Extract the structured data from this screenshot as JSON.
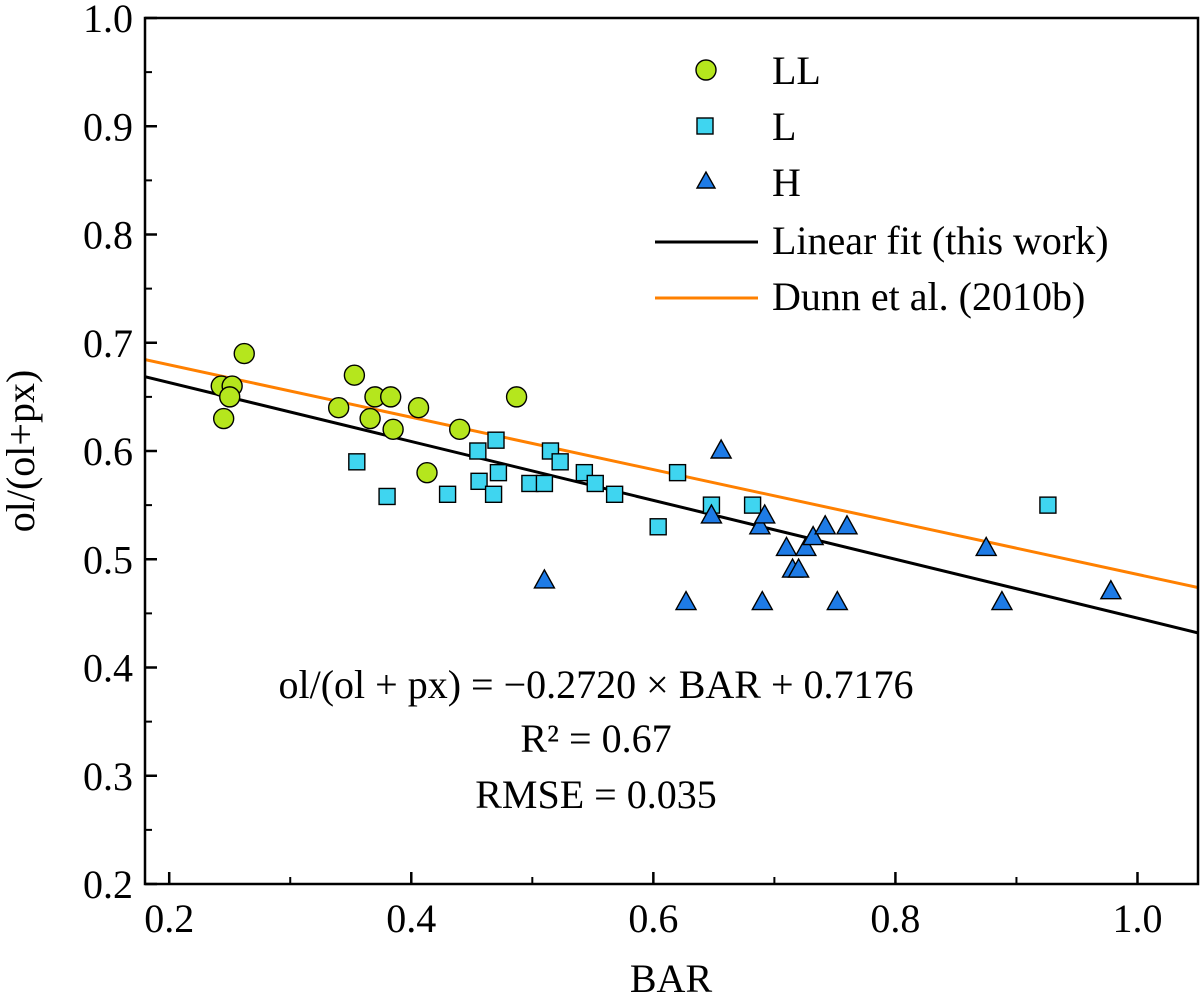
{
  "chart_data": {
    "type": "scatter",
    "xlabel": "BAR",
    "ylabel": "ol/(ol+px)",
    "xlim": [
      0.18,
      1.05
    ],
    "ylim": [
      0.2,
      1.0
    ],
    "xticks": [
      0.2,
      0.4,
      0.6,
      0.8,
      1.0
    ],
    "xtick_labels": [
      "0.2",
      "0.4",
      "0.6",
      "0.8",
      "1.0"
    ],
    "yticks": [
      0.2,
      0.3,
      0.4,
      0.5,
      0.6,
      0.7,
      0.8,
      0.9,
      1.0
    ],
    "ytick_labels": [
      "0.2",
      "0.3",
      "0.4",
      "0.5",
      "0.6",
      "0.7",
      "0.8",
      "0.9",
      "1.0"
    ],
    "grid": false,
    "legend_position": "top-right",
    "series": [
      {
        "name": "LL",
        "marker": "circle",
        "color": "#b5e61d",
        "points": [
          [
            0.243,
            0.66
          ],
          [
            0.252,
            0.66
          ],
          [
            0.262,
            0.69
          ],
          [
            0.245,
            0.63
          ],
          [
            0.25,
            0.65
          ],
          [
            0.34,
            0.64
          ],
          [
            0.353,
            0.67
          ],
          [
            0.366,
            0.63
          ],
          [
            0.37,
            0.65
          ],
          [
            0.383,
            0.65
          ],
          [
            0.385,
            0.62
          ],
          [
            0.406,
            0.64
          ],
          [
            0.413,
            0.58
          ],
          [
            0.44,
            0.62
          ],
          [
            0.487,
            0.65
          ]
        ]
      },
      {
        "name": "L",
        "marker": "square",
        "color": "#3fd5f0",
        "points": [
          [
            0.355,
            0.59
          ],
          [
            0.38,
            0.558
          ],
          [
            0.43,
            0.56
          ],
          [
            0.455,
            0.6
          ],
          [
            0.456,
            0.572
          ],
          [
            0.47,
            0.61
          ],
          [
            0.468,
            0.56
          ],
          [
            0.472,
            0.58
          ],
          [
            0.498,
            0.57
          ],
          [
            0.51,
            0.57
          ],
          [
            0.515,
            0.6
          ],
          [
            0.523,
            0.59
          ],
          [
            0.543,
            0.58
          ],
          [
            0.552,
            0.57
          ],
          [
            0.568,
            0.56
          ],
          [
            0.604,
            0.53
          ],
          [
            0.62,
            0.58
          ],
          [
            0.648,
            0.55
          ],
          [
            0.682,
            0.55
          ],
          [
            0.926,
            0.55
          ]
        ]
      },
      {
        "name": "H",
        "marker": "triangle",
        "color": "#1e7be6",
        "points": [
          [
            0.51,
            0.48
          ],
          [
            0.627,
            0.46
          ],
          [
            0.648,
            0.54
          ],
          [
            0.656,
            0.6
          ],
          [
            0.688,
            0.53
          ],
          [
            0.69,
            0.46
          ],
          [
            0.692,
            0.54
          ],
          [
            0.71,
            0.51
          ],
          [
            0.715,
            0.49
          ],
          [
            0.72,
            0.49
          ],
          [
            0.726,
            0.51
          ],
          [
            0.732,
            0.52
          ],
          [
            0.742,
            0.53
          ],
          [
            0.752,
            0.46
          ],
          [
            0.76,
            0.53
          ],
          [
            0.875,
            0.51
          ],
          [
            0.888,
            0.46
          ],
          [
            0.978,
            0.47
          ]
        ]
      }
    ],
    "lines": [
      {
        "name": "Linear fit (this work)",
        "color": "#000000",
        "slope": -0.272,
        "intercept": 0.7176
      },
      {
        "name": "Dunn et al. (2010b)",
        "color": "#ff8000",
        "slope": -0.242,
        "intercept": 0.728
      }
    ],
    "annotations": [
      "ol/(ol + px) = −0.2720 × BAR + 0.7176",
      "R² = 0.67",
      "RMSE = 0.035"
    ]
  }
}
